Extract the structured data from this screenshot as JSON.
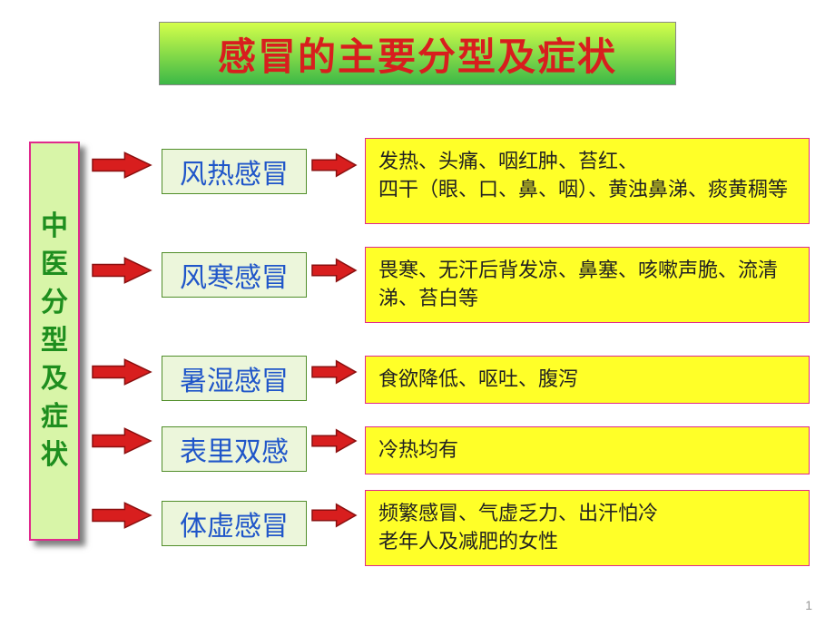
{
  "title": "感冒的主要分型及症状",
  "leftColumn": {
    "chars": [
      "中",
      "医",
      "分",
      "型",
      "及",
      "症",
      "状"
    ]
  },
  "categories": [
    {
      "label": "风热感冒",
      "symptom": "发热、头痛、咽红肿、苔红、\n四干（眼、口、鼻、咽）、黄浊鼻涕、痰黄稠等"
    },
    {
      "label": "风寒感冒",
      "symptom": "畏寒、无汗后背发凉、鼻塞、咳嗽声脆、流清涕、苔白等"
    },
    {
      "label": "暑湿感冒",
      "symptom": "食欲降低、呕吐、腹泻"
    },
    {
      "label": "表里双感",
      "symptom": "冷热均有"
    },
    {
      "label": "体虚感冒",
      "symptom": "频繁感冒、气虚乏力、出汗怕冷\n老年人及减肥的女性"
    }
  ],
  "layout": {
    "categoryX": 178,
    "symptomX": 402,
    "symptomWidth": 490,
    "rows": [
      {
        "catY": 164,
        "symY": 152,
        "symH": 95,
        "arrowLY": 182,
        "arrowRY": 182
      },
      {
        "catY": 278,
        "symY": 272,
        "symH": 70,
        "arrowLY": 298,
        "arrowRY": 298
      },
      {
        "catY": 392,
        "symY": 392,
        "symH": 46,
        "arrowLY": 410,
        "arrowRY": 410
      },
      {
        "catY": 470,
        "symY": 470,
        "symH": 46,
        "arrowLY": 486,
        "arrowRY": 486
      },
      {
        "catY": 552,
        "symY": 540,
        "symH": 70,
        "arrowLY": 568,
        "arrowRY": 568
      }
    ]
  },
  "colors": {
    "arrow": "#d81e1e",
    "arrowStroke": "#8a0f0f"
  },
  "pageNum": "1"
}
